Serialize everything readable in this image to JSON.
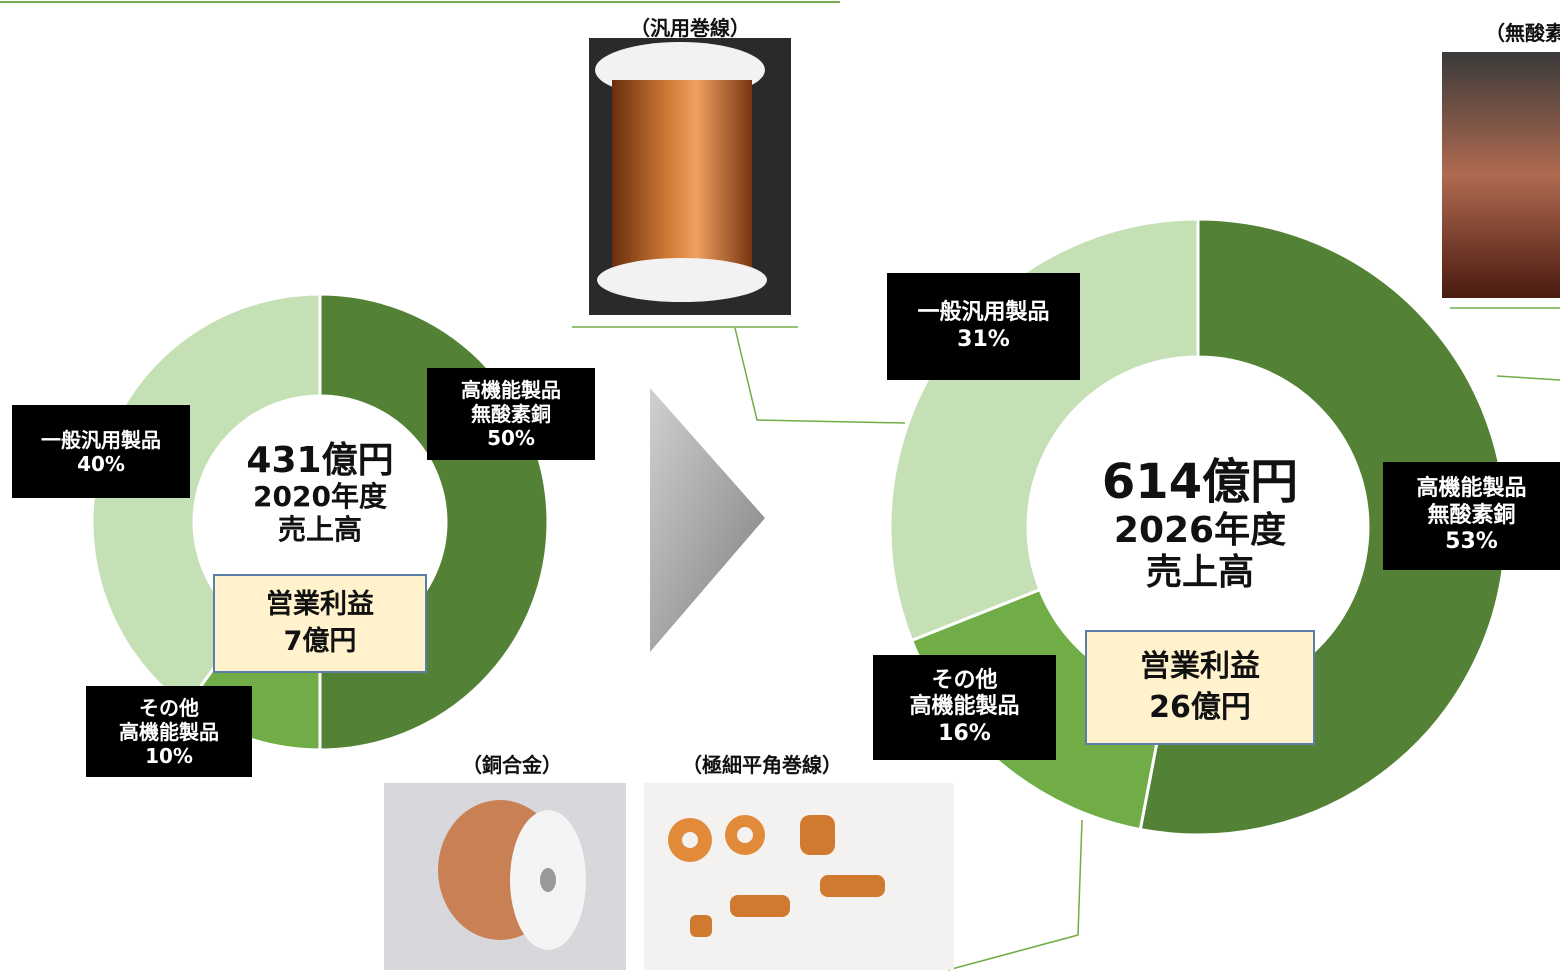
{
  "chart_data": [
    {
      "type": "pie",
      "center_lines": [
        "431億円",
        "2020年度",
        "売上高"
      ],
      "profit_lines": [
        "営業利益",
        "7億円"
      ],
      "categories": [
        "高機能製品\n無酸素銅",
        "その他\n高機能製品",
        "一般汎用製品"
      ],
      "values": [
        50,
        10,
        40
      ],
      "value_labels": [
        "50%",
        "10%",
        "40%"
      ],
      "colors": [
        "#538135",
        "#70ad47",
        "#c5e0b4"
      ]
    },
    {
      "type": "pie",
      "center_lines": [
        "614億円",
        "2026年度",
        "売上高"
      ],
      "profit_lines": [
        "営業利益",
        "26億円"
      ],
      "categories": [
        "高機能製品\n無酸素銅",
        "その他\n高機能製品",
        "一般汎用製品"
      ],
      "values": [
        53,
        16,
        31
      ],
      "value_labels": [
        "53%",
        "16%",
        "31%"
      ],
      "colors": [
        "#538135",
        "#70ad47",
        "#c5e0b4"
      ]
    }
  ],
  "photo_captions": [
    "（汎用巻線）",
    "（無酸素銅）",
    "（銅合金）",
    "（極細平角巻線）"
  ]
}
